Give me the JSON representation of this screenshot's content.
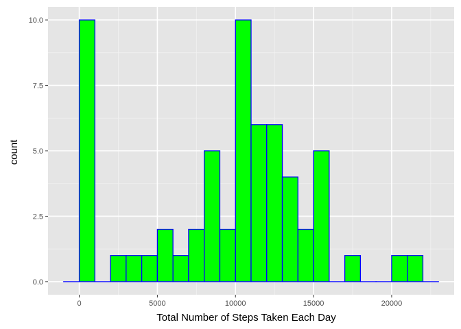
{
  "chart_data": {
    "type": "bar",
    "title": "",
    "xlabel": "Total Number of Steps Taken Each Day",
    "ylabel": "count",
    "bin_width": 1000,
    "bins": [
      {
        "start": -1000,
        "end": 0,
        "count": 0
      },
      {
        "start": 0,
        "end": 1000,
        "count": 10
      },
      {
        "start": 1000,
        "end": 2000,
        "count": 0
      },
      {
        "start": 2000,
        "end": 3000,
        "count": 1
      },
      {
        "start": 3000,
        "end": 4000,
        "count": 1
      },
      {
        "start": 4000,
        "end": 5000,
        "count": 1
      },
      {
        "start": 5000,
        "end": 6000,
        "count": 2
      },
      {
        "start": 6000,
        "end": 7000,
        "count": 1
      },
      {
        "start": 7000,
        "end": 8000,
        "count": 2
      },
      {
        "start": 8000,
        "end": 9000,
        "count": 5
      },
      {
        "start": 9000,
        "end": 10000,
        "count": 2
      },
      {
        "start": 10000,
        "end": 11000,
        "count": 10
      },
      {
        "start": 11000,
        "end": 12000,
        "count": 6
      },
      {
        "start": 12000,
        "end": 13000,
        "count": 6
      },
      {
        "start": 13000,
        "end": 14000,
        "count": 4
      },
      {
        "start": 14000,
        "end": 15000,
        "count": 2
      },
      {
        "start": 15000,
        "end": 16000,
        "count": 5
      },
      {
        "start": 16000,
        "end": 17000,
        "count": 0
      },
      {
        "start": 17000,
        "end": 18000,
        "count": 1
      },
      {
        "start": 18000,
        "end": 19000,
        "count": 0
      },
      {
        "start": 19000,
        "end": 20000,
        "count": 0
      },
      {
        "start": 20000,
        "end": 21000,
        "count": 1
      },
      {
        "start": 21000,
        "end": 22000,
        "count": 1
      },
      {
        "start": 22000,
        "end": 23000,
        "count": 0
      }
    ],
    "xlim": [
      -2000,
      24000
    ],
    "ylim": [
      -0.5,
      10.5
    ],
    "x_ticks": [
      0,
      5000,
      10000,
      15000,
      20000
    ],
    "x_tick_labels": [
      "0",
      "5000",
      "10000",
      "15000",
      "20000"
    ],
    "y_ticks": [
      0,
      2.5,
      5,
      7.5,
      10
    ],
    "y_tick_labels": [
      "0.0",
      "2.5",
      "5.0",
      "7.5",
      "10.0"
    ],
    "grid": true,
    "colors": {
      "panel_background": "#e5e5e5",
      "grid_major": "#ffffff",
      "grid_minor": "#f2f2f2",
      "bar_fill": "#00ff00",
      "bar_outline": "#0000ff"
    }
  }
}
